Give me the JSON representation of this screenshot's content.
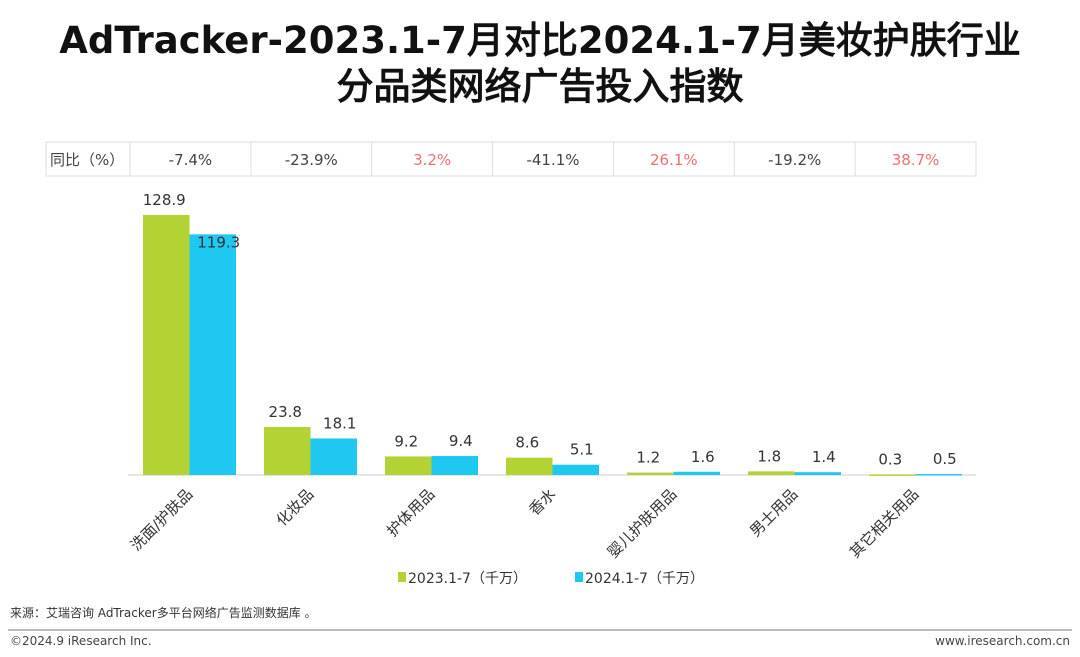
{
  "title_line1": "AdTracker-2023.1-7月对比2024.1-7月美妆护肤行业",
  "title_line2": "分品类网络广告投入指数",
  "chart_data": {
    "type": "bar",
    "categories": [
      "洗面/护肤品",
      "化妆品",
      "护体用品",
      "香水",
      "婴儿护肤用品",
      "男士用品",
      "其它相关用品"
    ],
    "series": [
      {
        "name": "2023.1-7（千万）",
        "color": "#b3d334",
        "values": [
          128.9,
          23.8,
          9.2,
          8.6,
          1.2,
          1.8,
          0.3
        ]
      },
      {
        "name": "2024.1-7（千万）",
        "color": "#1ec8f0",
        "values": [
          119.3,
          18.1,
          9.4,
          5.1,
          1.6,
          1.4,
          0.5
        ]
      }
    ],
    "yoy_label": "同比（%）",
    "yoy": [
      "-7.4%",
      "-23.9%",
      "3.2%",
      "-41.1%",
      "26.1%",
      "-19.2%",
      "38.7%"
    ],
    "yoy_positive_color": "#f07070",
    "yoy_negative_color": "#444444",
    "legend_position": "bottom",
    "ylim": [
      0,
      130
    ]
  },
  "footer": {
    "source": "来源：艾瑞咨询 AdTracker多平台网络广告监测数据库 。",
    "copyright": "©2024.9 iResearch Inc.",
    "website": "www.iresearch.com.cn"
  }
}
